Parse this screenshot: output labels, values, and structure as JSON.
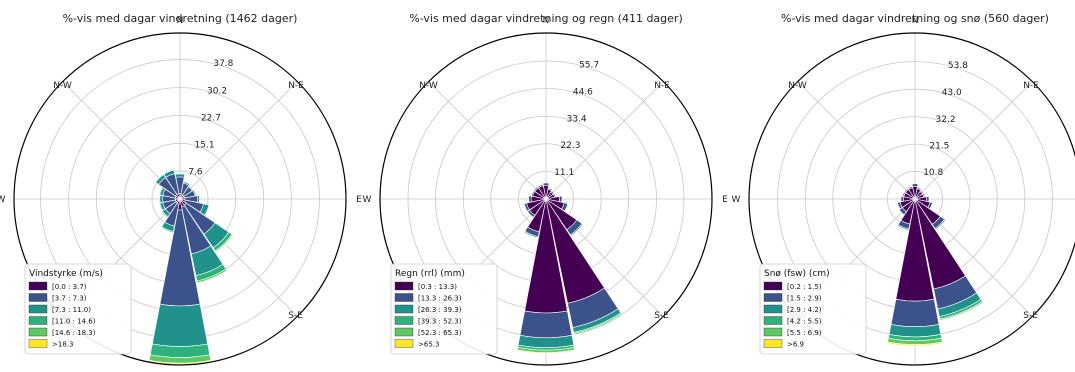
{
  "colors": {
    "bins": [
      "#440154",
      "#3b528b",
      "#21918c",
      "#2db27d",
      "#5ec962",
      "#fde725"
    ],
    "grid": "#c8c8c8",
    "frame": "#000000"
  },
  "chart_data": [
    {
      "type": "windrose",
      "title": "%-vis med dagar vindretning (1462 dager)",
      "direction_labels": [
        "N",
        "N-E",
        "E",
        "S-E",
        "S",
        "S-W",
        "W",
        "N-W"
      ],
      "radial_ticks": [
        "7.6",
        "15.1",
        "22.7",
        "30.2",
        "37.8"
      ],
      "rmax": 45,
      "legend": {
        "title": "Vindstyrke (m/s)",
        "placement": "lower-left",
        "items": [
          "[0.0 : 3.7)",
          "[3.7 : 7.3)",
          "[7.3 : 11.0)",
          "[11.0 : 14.6)",
          "[14.6 : 18.3)",
          ">18.3"
        ]
      },
      "sectors": [
        {
          "dir": "N",
          "values": [
            1.5,
            4.5,
            0.8,
            0.2,
            0,
            0
          ]
        },
        {
          "dir": "NNE",
          "values": [
            1.2,
            3.2,
            0.4,
            0,
            0,
            0
          ]
        },
        {
          "dir": "NE",
          "values": [
            1.2,
            2.8,
            0.3,
            0,
            0,
            0
          ]
        },
        {
          "dir": "ENE",
          "values": [
            1.2,
            3.0,
            0.3,
            0,
            0,
            0
          ]
        },
        {
          "dir": "E",
          "values": [
            1.3,
            3.5,
            0.5,
            0,
            0,
            0
          ]
        },
        {
          "dir": "ESE",
          "values": [
            1.5,
            5.0,
            1.5,
            0.2,
            0,
            0
          ]
        },
        {
          "dir": "SE",
          "values": [
            2.0,
            9.5,
            4.5,
            1.0,
            0.3,
            0
          ]
        },
        {
          "dir": "SSE",
          "values": [
            2.2,
            13.0,
            6.0,
            1.5,
            0.5,
            0
          ]
        },
        {
          "dir": "S",
          "values": [
            3.0,
            26.0,
            11.0,
            3.0,
            1.5,
            0.3
          ]
        },
        {
          "dir": "SSW",
          "values": [
            1.5,
            6.0,
            1.5,
            0.3,
            0,
            0
          ]
        },
        {
          "dir": "SW",
          "values": [
            1.3,
            3.5,
            1.0,
            0.3,
            0,
            0
          ]
        },
        {
          "dir": "WSW",
          "values": [
            1.3,
            3.5,
            0.8,
            0.2,
            0,
            0
          ]
        },
        {
          "dir": "W",
          "values": [
            1.2,
            3.5,
            0.8,
            0.2,
            0,
            0
          ]
        },
        {
          "dir": "WNW",
          "values": [
            1.3,
            3.5,
            0.8,
            0.2,
            0,
            0
          ]
        },
        {
          "dir": "NW",
          "values": [
            1.5,
            5.5,
            1.0,
            0.2,
            0,
            0
          ]
        },
        {
          "dir": "NNW",
          "values": [
            1.5,
            5.5,
            1.0,
            0.2,
            0,
            0
          ]
        }
      ]
    },
    {
      "type": "windrose",
      "title": "%-vis med dagar vindretning og regn (411 dager)",
      "direction_labels": [
        "N",
        "N-E",
        "E",
        "S-E",
        "S",
        "S-W",
        "W",
        "N-W"
      ],
      "radial_ticks": [
        "11.1",
        "22.3",
        "33.4",
        "44.6",
        "55.7"
      ],
      "rmax": 67,
      "legend": {
        "title": "Regn (rrl) (mm)",
        "placement": "lower-left",
        "items": [
          "[0.3 : 13.3)",
          "[13.3 : 26.3)",
          "[26.3 : 39.3)",
          "[39.3 : 52.3)",
          "[52.3 : 65.3)",
          ">65.3"
        ]
      },
      "sectors": [
        {
          "dir": "N",
          "values": [
            5.5,
            1.0,
            0,
            0,
            0,
            0
          ]
        },
        {
          "dir": "NNE",
          "values": [
            4.0,
            0.5,
            0,
            0,
            0,
            0
          ]
        },
        {
          "dir": "NE",
          "values": [
            3.5,
            0.5,
            0,
            0,
            0,
            0
          ]
        },
        {
          "dir": "ENE",
          "values": [
            3.5,
            0.5,
            0,
            0,
            0,
            0
          ]
        },
        {
          "dir": "E",
          "values": [
            5.5,
            1.0,
            0,
            0,
            0,
            0
          ]
        },
        {
          "dir": "ESE",
          "values": [
            7.5,
            1.5,
            0.2,
            0,
            0,
            0
          ]
        },
        {
          "dir": "SE",
          "values": [
            15.0,
            2.5,
            0.5,
            0,
            0,
            0
          ]
        },
        {
          "dir": "SSE",
          "values": [
            43.0,
            10.0,
            2.0,
            0.5,
            0.5,
            0
          ]
        },
        {
          "dir": "S",
          "values": [
            46.0,
            10.0,
            4.0,
            1.0,
            1.0,
            0.3
          ]
        },
        {
          "dir": "SSW",
          "values": [
            13.5,
            2.0,
            0.5,
            0,
            0,
            0
          ]
        },
        {
          "dir": "SW",
          "values": [
            8.0,
            1.0,
            0.3,
            0,
            0,
            0
          ]
        },
        {
          "dir": "WSW",
          "values": [
            8.0,
            1.0,
            0.3,
            0,
            0,
            0
          ]
        },
        {
          "dir": "W",
          "values": [
            6.0,
            1.0,
            0,
            0,
            0,
            0
          ]
        },
        {
          "dir": "WNW",
          "values": [
            5.5,
            0.5,
            0,
            0,
            0,
            0
          ]
        },
        {
          "dir": "NW",
          "values": [
            5.5,
            0.5,
            0,
            0,
            0,
            0
          ]
        },
        {
          "dir": "NNW",
          "values": [
            5.5,
            0.5,
            0,
            0,
            0,
            0
          ]
        }
      ]
    },
    {
      "type": "windrose",
      "title": "%-vis med dagar vindretning og snø (560 dager)",
      "direction_labels": [
        "N",
        "N-E",
        "E",
        "S-E",
        "S",
        "S-W",
        "W",
        "N-W"
      ],
      "radial_ticks": [
        "10.8",
        "21.5",
        "32.2",
        "43.0",
        "53.8"
      ],
      "rmax": 65,
      "legend": {
        "title": "Snø (fsw) (cm)",
        "placement": "lower-left",
        "items": [
          "[0.2 : 1.5)",
          "[1.5 : 2.9)",
          "[2.9 : 4.2)",
          "[4.2 : 5.5)",
          "[5.5 : 6.9)",
          ">6.9"
        ]
      },
      "sectors": [
        {
          "dir": "N",
          "values": [
            5.0,
            1.0,
            0,
            0,
            0,
            0
          ]
        },
        {
          "dir": "NNE",
          "values": [
            4.0,
            0.5,
            0,
            0,
            0,
            0
          ]
        },
        {
          "dir": "NE",
          "values": [
            3.5,
            0.5,
            0,
            0,
            0,
            0
          ]
        },
        {
          "dir": "ENE",
          "values": [
            3.5,
            0.5,
            0,
            0,
            0,
            0
          ]
        },
        {
          "dir": "E",
          "values": [
            4.5,
            1.0,
            0,
            0,
            0,
            0
          ]
        },
        {
          "dir": "ESE",
          "values": [
            6.0,
            1.0,
            0.2,
            0,
            0,
            0
          ]
        },
        {
          "dir": "SE",
          "values": [
            12.0,
            2.0,
            0.5,
            0,
            0,
            0
          ]
        },
        {
          "dir": "SSE",
          "values": [
            36.0,
            8.0,
            3.0,
            1.0,
            0.5,
            0
          ]
        },
        {
          "dir": "S",
          "values": [
            40.0,
            10.0,
            4.0,
            1.5,
            1.5,
            0.5
          ]
        },
        {
          "dir": "SSW",
          "values": [
            10.0,
            2.0,
            0.5,
            0,
            0,
            0
          ]
        },
        {
          "dir": "SW",
          "values": [
            6.0,
            1.5,
            0.3,
            0,
            0,
            0
          ]
        },
        {
          "dir": "WSW",
          "values": [
            6.0,
            1.0,
            0.3,
            0,
            0,
            0
          ]
        },
        {
          "dir": "W",
          "values": [
            4.5,
            1.0,
            0,
            0,
            0,
            0
          ]
        },
        {
          "dir": "WNW",
          "values": [
            4.5,
            0.5,
            0,
            0,
            0,
            0
          ]
        },
        {
          "dir": "NW",
          "values": [
            4.5,
            0.5,
            0,
            0,
            0,
            0
          ]
        },
        {
          "dir": "NNW",
          "values": [
            4.5,
            0.5,
            0,
            0,
            0,
            0
          ]
        }
      ]
    }
  ]
}
